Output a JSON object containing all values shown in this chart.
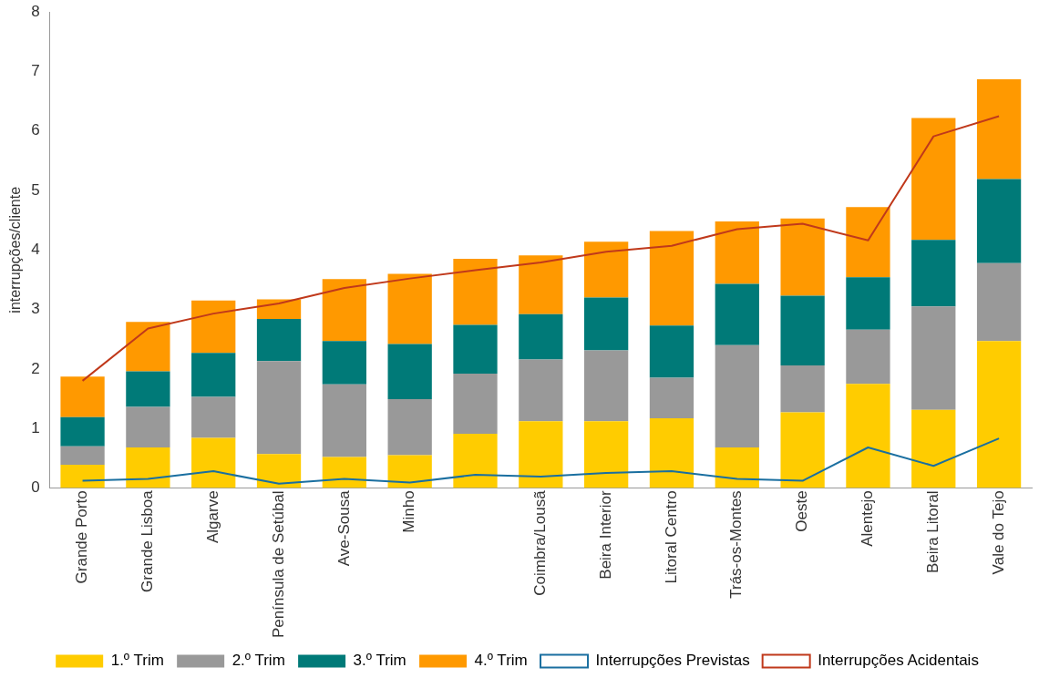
{
  "chart_data": {
    "type": "bar",
    "stacked": true,
    "ylabel": "interrupções/cliente",
    "categories": [
      "Grande Porto",
      "Grande Lisboa",
      "Algarve",
      "Península de Setúbal",
      "Ave-Sousa",
      "Minho",
      null,
      "Coimbra/Lousã",
      "Beira Interior",
      "Litoral Centro",
      "Trás-os-Montes",
      "Oeste",
      "Alentejo",
      "Beira Litoral",
      "Vale do Tejo"
    ],
    "series": [
      {
        "name": "1.º Trim",
        "color": "#ffcc00",
        "values": [
          0.39,
          0.68,
          0.84,
          0.57,
          0.52,
          0.55,
          0.91,
          1.12,
          1.12,
          1.17,
          0.68,
          1.27,
          1.75,
          1.31,
          2.47
        ]
      },
      {
        "name": "2.º Trim",
        "color": "#999999",
        "values": [
          0.31,
          0.68,
          0.69,
          1.56,
          1.22,
          0.94,
          1.01,
          1.04,
          1.19,
          0.68,
          1.72,
          0.79,
          0.91,
          1.74,
          1.31
        ]
      },
      {
        "name": "3.º Trim",
        "color": "#007a78",
        "values": [
          0.49,
          0.6,
          0.74,
          0.71,
          0.73,
          0.93,
          0.82,
          0.76,
          0.89,
          0.88,
          1.03,
          1.17,
          0.88,
          1.12,
          1.41
        ]
      },
      {
        "name": "4.º Trim",
        "color": "#ff9900",
        "values": [
          0.68,
          0.83,
          0.88,
          0.33,
          1.04,
          1.18,
          1.11,
          0.99,
          0.94,
          1.59,
          1.05,
          1.3,
          1.18,
          2.05,
          1.68
        ]
      },
      {
        "name": "Interrupções Previstas",
        "type": "line",
        "color": "#1a6fa0",
        "values": [
          0.12,
          0.15,
          0.28,
          0.07,
          0.15,
          0.09,
          0.22,
          0.19,
          0.25,
          0.28,
          0.15,
          0.12,
          0.68,
          0.37,
          0.83
        ]
      },
      {
        "name": "Interrupções Acidentais",
        "type": "line",
        "color": "#c0391b",
        "values": [
          1.8,
          2.68,
          2.93,
          3.1,
          3.36,
          3.52,
          3.66,
          3.79,
          3.97,
          4.07,
          4.35,
          4.44,
          4.16,
          5.91,
          6.25
        ]
      }
    ],
    "ylim": [
      0,
      8
    ],
    "yticks": [
      0,
      1,
      2,
      3,
      4,
      5,
      6,
      7,
      8
    ],
    "legend": "bottom",
    "marker": "none"
  }
}
